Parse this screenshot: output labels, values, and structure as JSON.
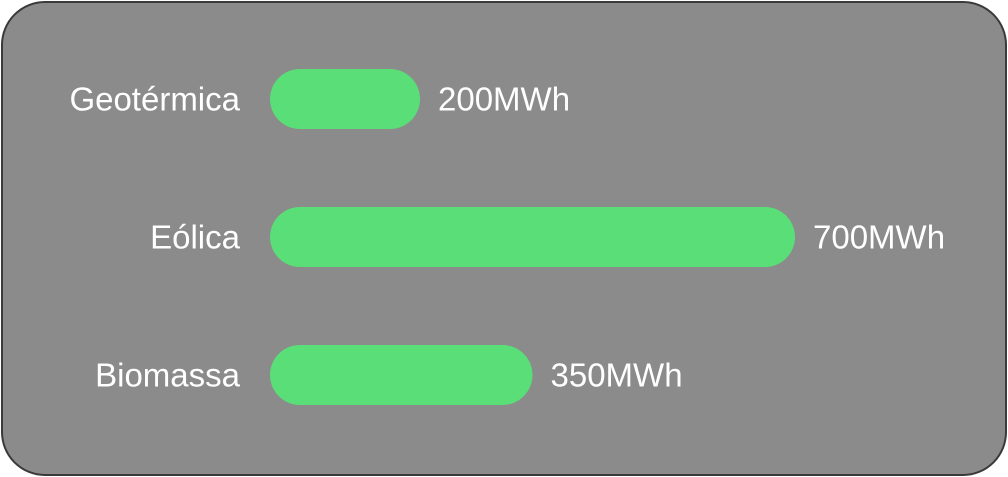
{
  "chart_data": {
    "type": "bar",
    "orientation": "horizontal",
    "categories": [
      "Geotérmica",
      "Eólica",
      "Biomassa"
    ],
    "values": [
      200,
      700,
      350
    ],
    "value_labels": [
      "200MWh",
      "700MWh",
      "350MWh"
    ],
    "unit": "MWh",
    "title": "",
    "xlabel": "",
    "ylabel": "",
    "xlim": [
      0,
      700
    ],
    "grid": false,
    "legend": "none",
    "colors": {
      "bar": "#5ade78",
      "background": "#8a8b8a",
      "border": "#3a3a3a",
      "text": "#ffffff"
    }
  }
}
